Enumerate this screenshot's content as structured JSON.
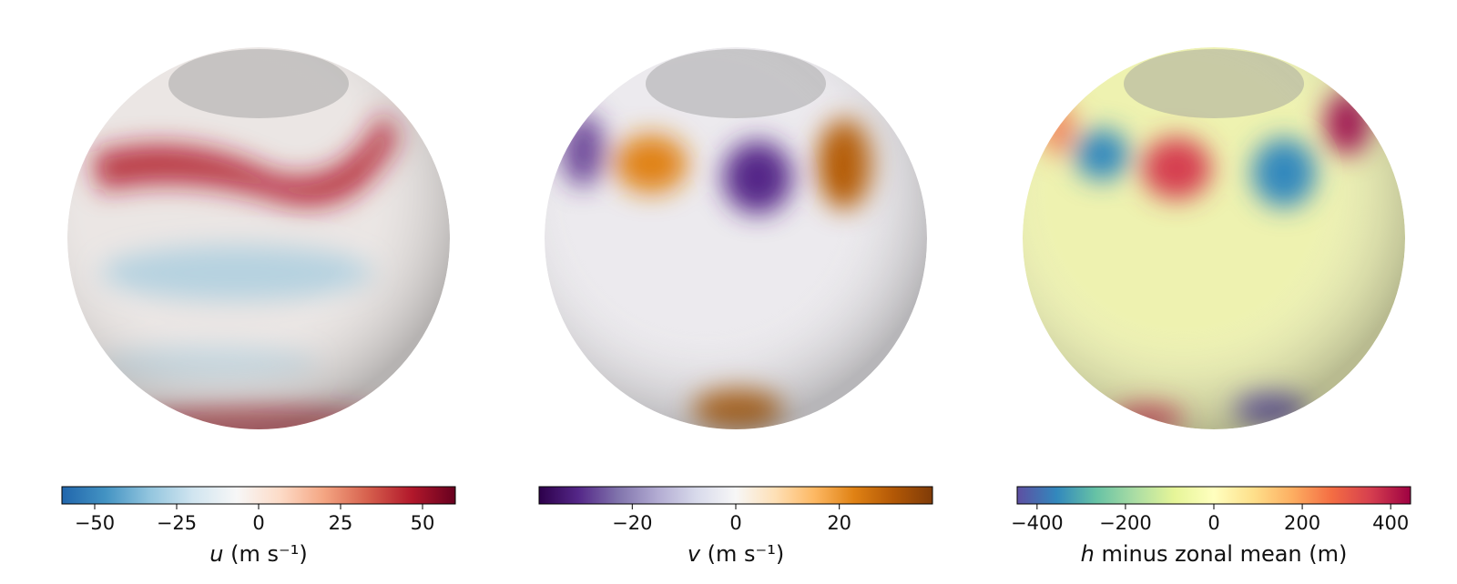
{
  "chart_data": [
    {
      "type": "colorbar",
      "xlabel": {
        "symbol": "u",
        "text": "(m s⁻¹)"
      },
      "xlim": [
        -60,
        60
      ],
      "xticks": [
        {
          "value": -50,
          "label": "−50"
        },
        {
          "value": -25,
          "label": "−25"
        },
        0,
        25,
        50
      ],
      "colors": [
        "#2166ac",
        "#4393c3",
        "#92c5de",
        "#d1e5f0",
        "#f7f7f7",
        "#fddbc7",
        "#f4a582",
        "#d6604d",
        "#b2182b",
        "#67001f"
      ]
    },
    {
      "type": "colorbar",
      "xlabel": {
        "symbol": "v",
        "text": "(m s⁻¹)"
      },
      "xlim": [
        -38,
        38
      ],
      "xticks": [
        {
          "value": -20,
          "label": "−20"
        },
        0,
        20
      ],
      "colors": [
        "#2d004b",
        "#542788",
        "#8073ac",
        "#b2abd2",
        "#d8daeb",
        "#f7f7f7",
        "#fee0b6",
        "#fdb863",
        "#e08214",
        "#b35806",
        "#7f3b08"
      ]
    },
    {
      "type": "colorbar",
      "xlabel": {
        "symbol": "h",
        "text": "minus zonal mean (m)"
      },
      "xlim": [
        -445,
        445
      ],
      "xticks": [
        {
          "value": -400,
          "label": "−400"
        },
        {
          "value": -200,
          "label": "−200"
        },
        0,
        200,
        400
      ],
      "colors": [
        "#5e4fa2",
        "#3288bd",
        "#66c2a5",
        "#abdda4",
        "#e6f598",
        "#ffffbf",
        "#fee08b",
        "#fdae61",
        "#f46d43",
        "#d53e4f",
        "#9e0142"
      ]
    }
  ]
}
